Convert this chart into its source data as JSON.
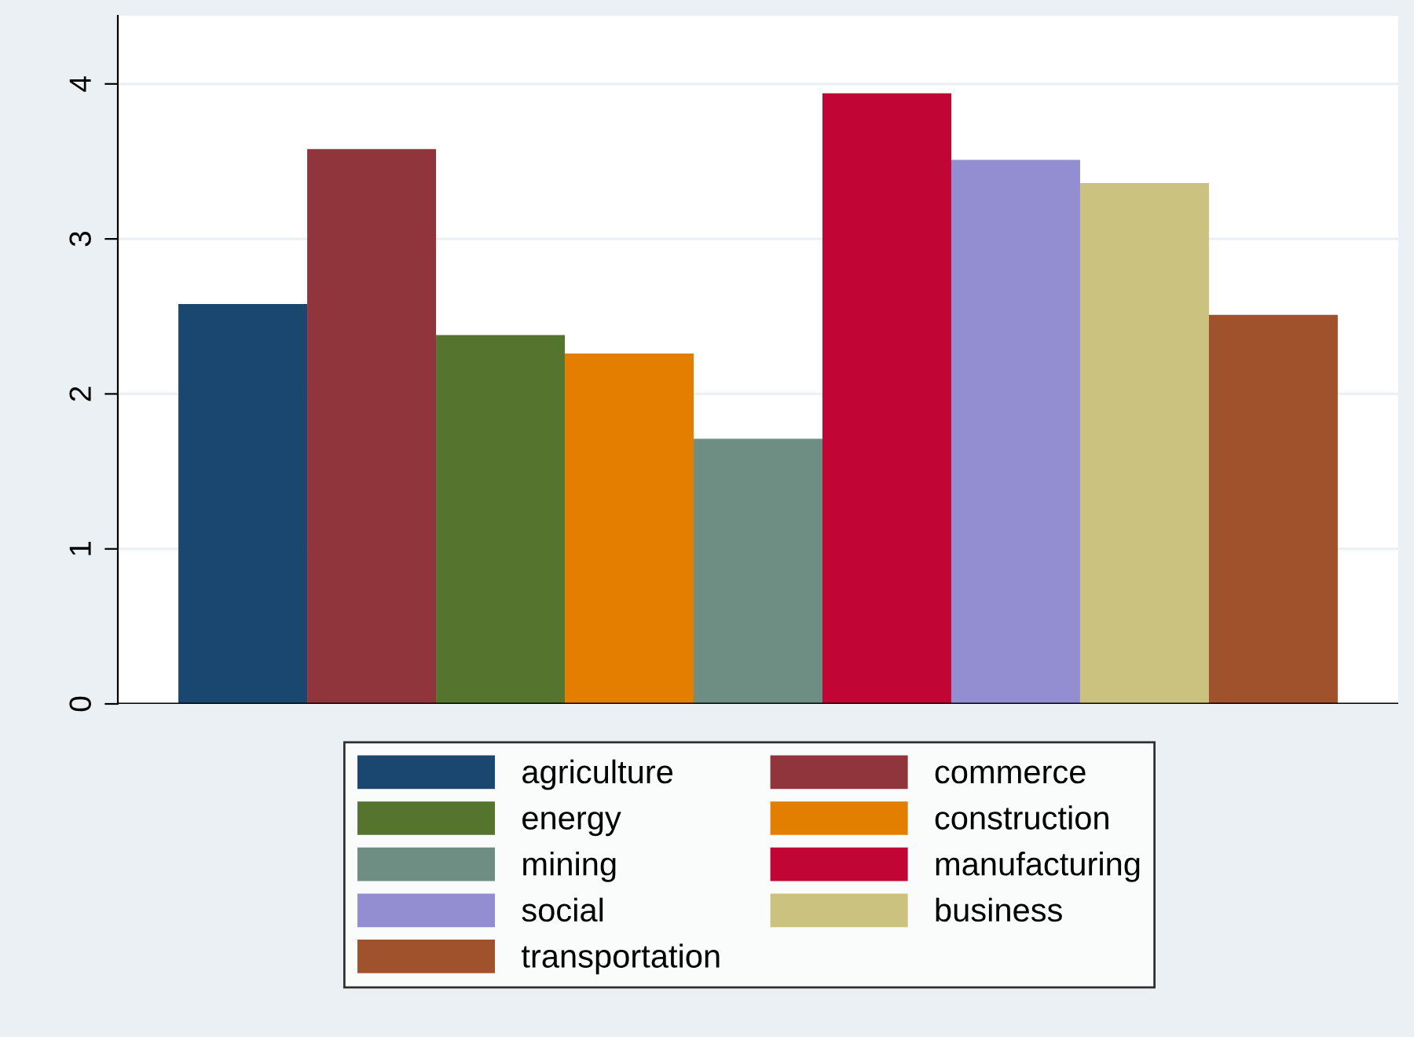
{
  "chart_data": {
    "type": "bar",
    "categories": [
      null
    ],
    "series": [
      {
        "name": "agriculture",
        "color": "#1a476f",
        "values": [
          2.58
        ]
      },
      {
        "name": "commerce",
        "color": "#90353b",
        "values": [
          3.58
        ]
      },
      {
        "name": "energy",
        "color": "#55752f",
        "values": [
          2.38
        ]
      },
      {
        "name": "construction",
        "color": "#e37e00",
        "values": [
          2.26
        ]
      },
      {
        "name": "mining",
        "color": "#6e8e84",
        "values": [
          1.71
        ]
      },
      {
        "name": "manufacturing",
        "color": "#c10534",
        "values": [
          3.94
        ]
      },
      {
        "name": "social",
        "color": "#938dd2",
        "values": [
          3.51
        ]
      },
      {
        "name": "business",
        "color": "#cac27e",
        "values": [
          3.36
        ]
      },
      {
        "name": "transportation",
        "color": "#a0522d",
        "values": [
          2.51
        ]
      }
    ],
    "ylim": [
      0,
      4.44
    ],
    "yticks": [
      0,
      1,
      2,
      3,
      4
    ],
    "grid": "y",
    "legend": "bottom",
    "tick_labels": "y"
  }
}
